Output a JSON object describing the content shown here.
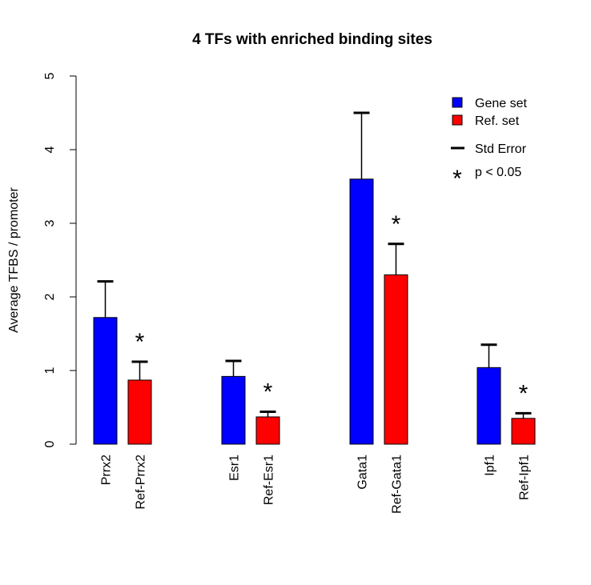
{
  "chart_data": {
    "type": "bar",
    "title": "4 TFs with enriched binding sites",
    "xlabel": "",
    "ylabel": "Average TFBS / promoter",
    "ylim": [
      0,
      5
    ],
    "yticks": [
      "0",
      "1",
      "2",
      "3",
      "4",
      "5"
    ],
    "grid": false,
    "legend_position": "top-right",
    "groups": [
      {
        "label": "Prrx2",
        "bars": [
          {
            "label": "Prrx2",
            "series": "Gene set",
            "value": 1.72,
            "error": 0.49,
            "significant": false
          },
          {
            "label": "Ref-Prrx2",
            "series": "Ref. set",
            "value": 0.87,
            "error": 0.25,
            "significant": true
          }
        ]
      },
      {
        "label": "Esr1",
        "bars": [
          {
            "label": "Esr1",
            "series": "Gene set",
            "value": 0.92,
            "error": 0.21,
            "significant": false
          },
          {
            "label": "Ref-Esr1",
            "series": "Ref. set",
            "value": 0.37,
            "error": 0.07,
            "significant": true
          }
        ]
      },
      {
        "label": "Gata1",
        "bars": [
          {
            "label": "Gata1",
            "series": "Gene set",
            "value": 3.6,
            "error": 0.9,
            "significant": false
          },
          {
            "label": "Ref-Gata1",
            "series": "Ref. set",
            "value": 2.3,
            "error": 0.42,
            "significant": true
          }
        ]
      },
      {
        "label": "Ipf1",
        "bars": [
          {
            "label": "Ipf1",
            "series": "Gene set",
            "value": 1.04,
            "error": 0.31,
            "significant": false
          },
          {
            "label": "Ref-Ipf1",
            "series": "Ref. set",
            "value": 0.35,
            "error": 0.07,
            "significant": true
          }
        ]
      }
    ],
    "series": [
      {
        "name": "Gene set",
        "color": "#0000ff"
      },
      {
        "name": "Ref. set",
        "color": "#ff0000"
      }
    ],
    "legend": {
      "items": [
        {
          "symbol": "square",
          "color": "#0000ff",
          "label": "Gene set"
        },
        {
          "symbol": "square",
          "color": "#ff0000",
          "label": "Ref. set"
        },
        {
          "symbol": "dash",
          "color": "#000000",
          "label": "Std Error"
        },
        {
          "symbol": "star",
          "color": "#000000",
          "label": "p < 0.05"
        }
      ]
    },
    "significance_marker": "*"
  }
}
